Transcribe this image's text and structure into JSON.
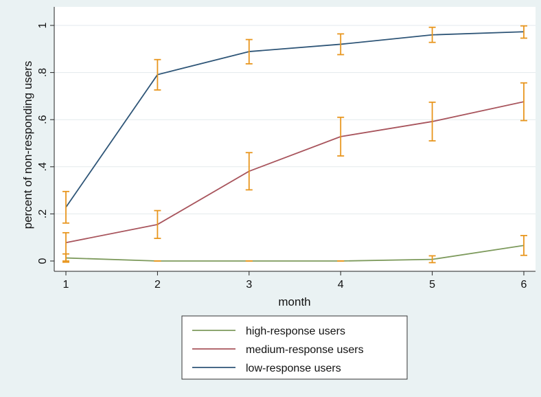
{
  "chart_data": {
    "type": "line",
    "xlabel": "month",
    "ylabel": "percent of non-responding users",
    "x": [
      1,
      2,
      3,
      4,
      5,
      6
    ],
    "xlim": [
      1,
      6
    ],
    "ylim": [
      0,
      1
    ],
    "xticks": [
      "1",
      "2",
      "3",
      "4",
      "5",
      "6"
    ],
    "yticks": [
      {
        "value": 0,
        "label": "0"
      },
      {
        "value": 0.2,
        "label": ".2"
      },
      {
        "value": 0.4,
        "label": ".4"
      },
      {
        "value": 0.6,
        "label": ".6"
      },
      {
        "value": 0.8,
        "label": ".8"
      },
      {
        "value": 1,
        "label": "1"
      }
    ],
    "grid": true,
    "legend_placement": "bottom",
    "error_bar_color": "#e8961e",
    "series": [
      {
        "name": "high-response users",
        "color": "#7d9a5c",
        "values": [
          0.013,
          0.0,
          0.0,
          0.0,
          0.007,
          0.066
        ],
        "lower": [
          0.0,
          0.0,
          0.0,
          0.0,
          -0.007,
          0.024
        ],
        "upper": [
          0.03,
          0.0,
          0.0,
          0.0,
          0.022,
          0.108
        ]
      },
      {
        "name": "medium-response users",
        "color": "#a8545c",
        "values": [
          0.078,
          0.155,
          0.381,
          0.528,
          0.592,
          0.676
        ],
        "lower": [
          -0.005,
          0.096,
          0.302,
          0.446,
          0.51,
          0.596
        ],
        "upper": [
          0.12,
          0.214,
          0.46,
          0.61,
          0.674,
          0.756
        ]
      },
      {
        "name": "low-response users",
        "color": "#2e5577",
        "values": [
          0.228,
          0.791,
          0.889,
          0.92,
          0.96,
          0.973
        ],
        "lower": [
          0.161,
          0.726,
          0.837,
          0.876,
          0.928,
          0.946
        ],
        "upper": [
          0.295,
          0.855,
          0.94,
          0.964,
          0.992,
          0.998
        ]
      }
    ]
  }
}
